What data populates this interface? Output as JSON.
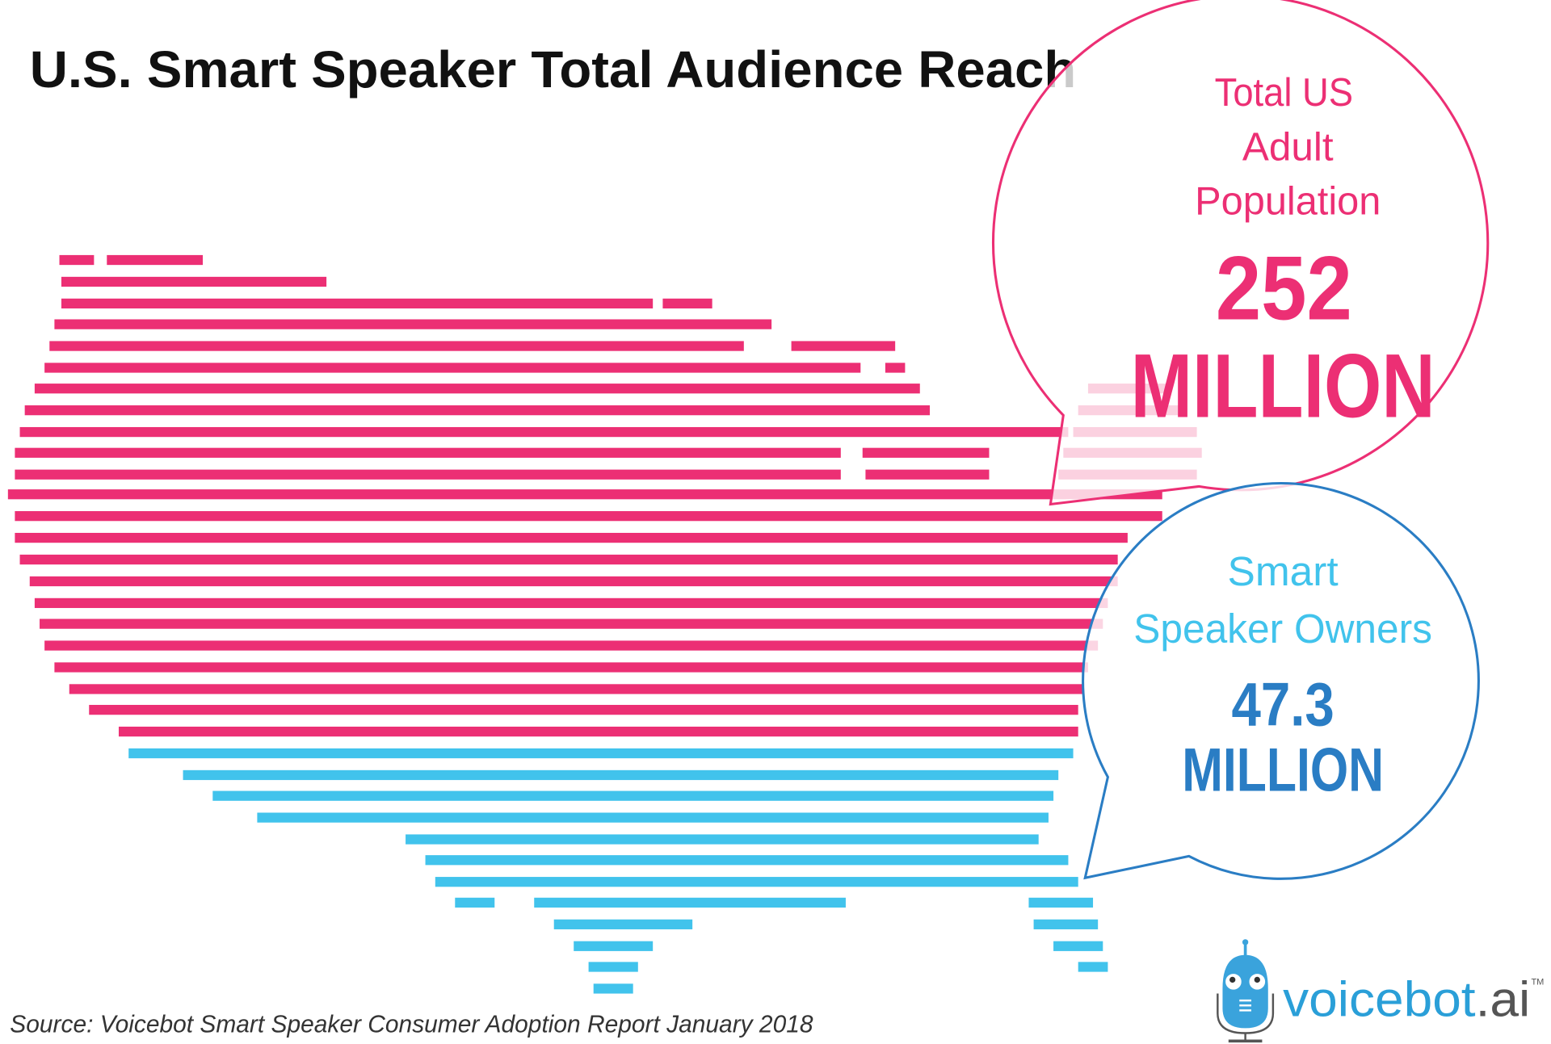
{
  "title": "U.S. Smart Speaker Total Audience Reach",
  "source": "Source: Voicebot Smart Speaker Consumer Adoption Report January 2018",
  "colors": {
    "pink": "#ec2f74",
    "light_blue": "#41c3ec",
    "dark_blue": "#2a7dc4",
    "title": "#111111"
  },
  "bubbles": {
    "population": {
      "label_lines": [
        "Total US",
        "Adult",
        "Population"
      ],
      "value": "252",
      "unit": "MILLION"
    },
    "owners": {
      "label_lines": [
        "Smart",
        "Speaker Owners"
      ],
      "value": "47.3",
      "unit": "MILLION"
    }
  },
  "logo": {
    "text": "voicebot",
    "suffix": ".ai",
    "tm": "TM"
  },
  "chart_data": {
    "type": "pictograph",
    "title": "U.S. Smart Speaker Total Audience Reach",
    "unit": "million",
    "series": [
      {
        "name": "Total US Adult Population",
        "value": 252,
        "color": "#ec2f74"
      },
      {
        "name": "Smart Speaker Owners",
        "value": 47.3,
        "color": "#41c3ec"
      }
    ]
  }
}
